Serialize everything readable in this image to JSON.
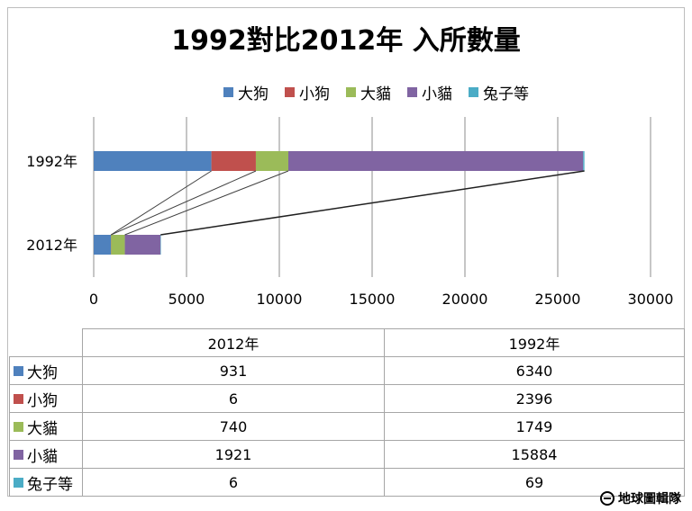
{
  "chart_data": {
    "type": "bar",
    "orientation": "horizontal",
    "stacked": true,
    "title": "1992對比2012年 入所數量",
    "categories": [
      "1992年",
      "2012年"
    ],
    "series": [
      {
        "name": "大狗",
        "color": "#4f81bd",
        "values": [
          6340,
          931
        ]
      },
      {
        "name": "小狗",
        "color": "#c0504d",
        "values": [
          2396,
          6
        ]
      },
      {
        "name": "大貓",
        "color": "#9bbb59",
        "values": [
          1749,
          740
        ]
      },
      {
        "name": "小貓",
        "color": "#8064a2",
        "values": [
          15884,
          1921
        ]
      },
      {
        "name": "兔子等",
        "color": "#4bacc6",
        "values": [
          69,
          6
        ]
      }
    ],
    "xlim": [
      0,
      30000
    ],
    "xticks": [
      0,
      5000,
      10000,
      15000,
      20000,
      25000,
      30000
    ],
    "grid": true,
    "legend_position": "top",
    "series_lines": true
  },
  "table": {
    "headers": [
      "2012年",
      "1992年"
    ]
  },
  "watermark": "地球圖輯隊"
}
